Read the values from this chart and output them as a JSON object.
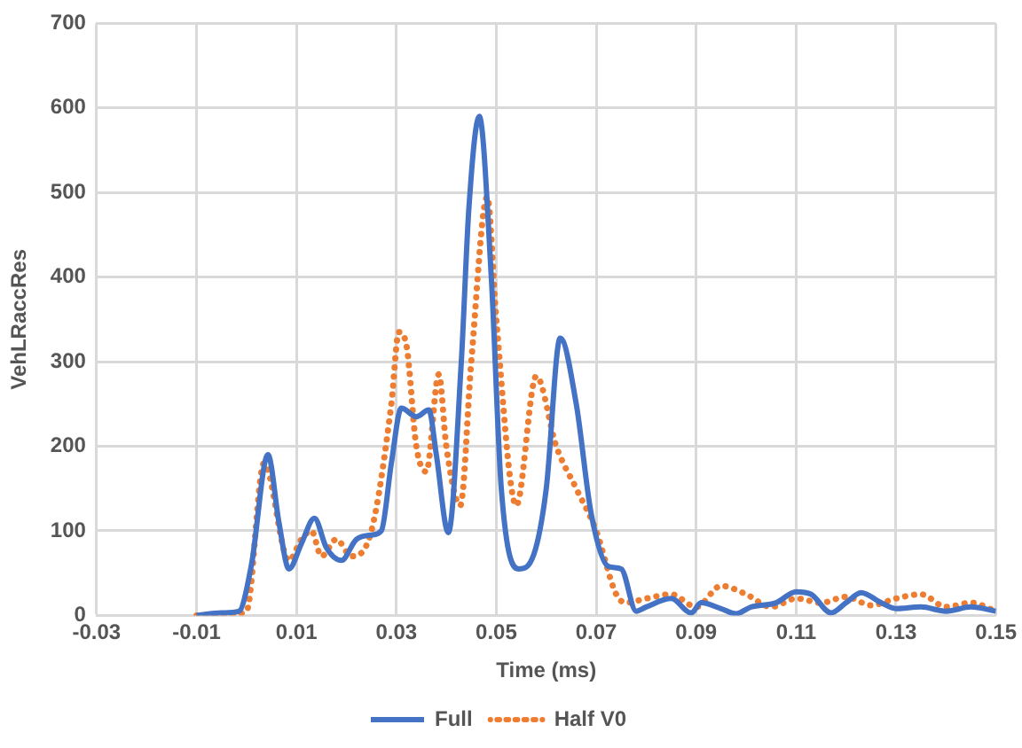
{
  "chart_data": {
    "type": "line",
    "xlabel": "Time (ms)",
    "ylabel": "VehLRaccRes",
    "xlim": [
      -0.03,
      0.15
    ],
    "xticks": [
      -0.03,
      -0.01,
      0.01,
      0.03,
      0.05,
      0.07,
      0.09,
      0.11,
      0.13,
      0.15
    ],
    "ylim": [
      0,
      700
    ],
    "yticks": [
      0,
      100,
      200,
      300,
      400,
      500,
      600,
      700
    ],
    "grid": true,
    "legend": "bottom",
    "marker": "none",
    "series": [
      {
        "name": "Full",
        "color": "#4472c4",
        "line_style": "solid",
        "x": [
          -0.01,
          -0.005,
          -0.0015,
          0.001,
          0.0043,
          0.0065,
          0.0085,
          0.011,
          0.0136,
          0.016,
          0.019,
          0.022,
          0.025,
          0.027,
          0.029,
          0.031,
          0.034,
          0.0365,
          0.038,
          0.0404,
          0.043,
          0.0445,
          0.0466,
          0.049,
          0.051,
          0.0545,
          0.0575,
          0.06,
          0.0628,
          0.066,
          0.069,
          0.0724,
          0.075,
          0.078,
          0.08,
          0.085,
          0.089,
          0.091,
          0.095,
          0.098,
          0.101,
          0.106,
          0.11,
          0.113,
          0.117,
          0.12,
          0.123,
          0.127,
          0.13,
          0.135,
          0.14,
          0.145,
          0.15
        ],
        "values": [
          0,
          3,
          5,
          60,
          190,
          110,
          55,
          85,
          115,
          80,
          65,
          90,
          95,
          100,
          180,
          245,
          235,
          243,
          190,
          98,
          300,
          480,
          590,
          400,
          150,
          55,
          72,
          150,
          328,
          250,
          120,
          58,
          55,
          5,
          10,
          20,
          3,
          15,
          8,
          2,
          10,
          15,
          28,
          25,
          3,
          15,
          27,
          15,
          8,
          10,
          5,
          10,
          5
        ]
      },
      {
        "name": "Half V0",
        "color": "#ed7d31",
        "line_style": "dotted",
        "x": [
          -0.01,
          -0.005,
          0.0,
          0.0035,
          0.0085,
          0.011,
          0.013,
          0.015,
          0.018,
          0.021,
          0.025,
          0.029,
          0.0305,
          0.032,
          0.034,
          0.036,
          0.0385,
          0.04,
          0.0428,
          0.045,
          0.0482,
          0.05,
          0.054,
          0.058,
          0.062,
          0.066,
          0.07,
          0.074,
          0.076,
          0.08,
          0.085,
          0.09,
          0.095,
          0.1,
          0.105,
          0.11,
          0.115,
          0.12,
          0.125,
          0.13,
          0.135,
          0.14,
          0.145,
          0.15
        ],
        "values": [
          0,
          0,
          5,
          180,
          65,
          90,
          100,
          70,
          90,
          70,
          100,
          250,
          335,
          320,
          200,
          170,
          285,
          200,
          130,
          300,
          495,
          350,
          130,
          283,
          200,
          150,
          100,
          25,
          15,
          20,
          25,
          10,
          35,
          25,
          10,
          20,
          15,
          22,
          12,
          20,
          25,
          10,
          15,
          5
        ]
      }
    ]
  }
}
